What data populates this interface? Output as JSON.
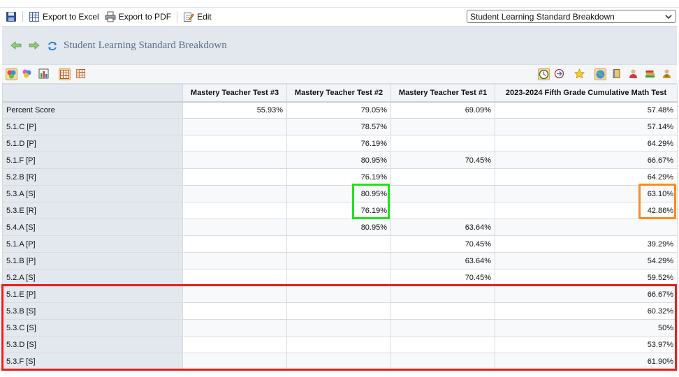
{
  "toolbar": {
    "save_label": "",
    "export_excel_label": "Export to Excel",
    "export_pdf_label": "Export to PDF",
    "edit_label": "Edit"
  },
  "view_select": {
    "selected": "Student Learning Standard Breakdown"
  },
  "header": {
    "title": "Student Learning Standard Breakdown"
  },
  "table": {
    "columns": [
      "",
      "Mastery Teacher Test #3",
      "Mastery Teacher Test #2",
      "Mastery Teacher Test #1",
      "2023-2024 Fifth Grade Cumulative Math Test"
    ],
    "rows": [
      {
        "label": "Percent Score",
        "cells": [
          "55.93%",
          "79.05%",
          "69.09%",
          "57.48%"
        ]
      },
      {
        "label": "5.1.C [P]",
        "cells": [
          "",
          "78.57%",
          "",
          "57.14%"
        ]
      },
      {
        "label": "5.1.D [P]",
        "cells": [
          "",
          "76.19%",
          "",
          "64.29%"
        ]
      },
      {
        "label": "5.1.F [P]",
        "cells": [
          "",
          "80.95%",
          "70.45%",
          "66.67%"
        ]
      },
      {
        "label": "5.2.B [R]",
        "cells": [
          "",
          "76.19%",
          "",
          "64.29%"
        ]
      },
      {
        "label": "5.3.A [S]",
        "cells": [
          "",
          "80.95%",
          "",
          "63.10%"
        ]
      },
      {
        "label": "5.3.E [R]",
        "cells": [
          "",
          "76.19%",
          "",
          "42.86%"
        ]
      },
      {
        "label": "5.4.A [S]",
        "cells": [
          "",
          "80.95%",
          "63.64%",
          ""
        ]
      },
      {
        "label": "5.1.A [P]",
        "cells": [
          "",
          "",
          "70.45%",
          "39.29%"
        ]
      },
      {
        "label": "5.1.B [P]",
        "cells": [
          "",
          "",
          "63.64%",
          "54.29%"
        ]
      },
      {
        "label": "5.2.A [S]",
        "cells": [
          "",
          "",
          "70.45%",
          "59.52%"
        ]
      },
      {
        "label": "5.1.E [P]",
        "cells": [
          "",
          "",
          "",
          "66.67%"
        ]
      },
      {
        "label": "5.3.B [S]",
        "cells": [
          "",
          "",
          "",
          "60.32%"
        ]
      },
      {
        "label": "5.3.C [S]",
        "cells": [
          "",
          "",
          "",
          "50%"
        ]
      },
      {
        "label": "5.3.D [S]",
        "cells": [
          "",
          "",
          "",
          "53.97%"
        ]
      },
      {
        "label": "5.3.F [S]",
        "cells": [
          "",
          "",
          "",
          "61.90%"
        ]
      }
    ]
  },
  "colors": {
    "highlight_green": "#1ee21e",
    "highlight_orange": "#ff8a1e",
    "highlight_red": "#f21a1a",
    "title_text": "#5a6f8c",
    "label_column_bg": "#e3e8ee"
  },
  "icons": {
    "toolbar": [
      "save-icon",
      "excel-icon",
      "pdf-icon",
      "edit-icon",
      "chevron-down-icon"
    ],
    "nav": [
      "back-arrow-icon",
      "forward-arrow-icon",
      "refresh-icon"
    ],
    "left_tools": [
      "color-palette-icon",
      "color-scheme-icon",
      "chart-icon",
      "grid-view-icon",
      "grid-alt-icon"
    ],
    "right_tools": [
      "clock-icon",
      "compare-icon",
      "star-icon",
      "globe-icon",
      "book-icon",
      "student-icon",
      "books-icon",
      "teacher-icon"
    ]
  }
}
